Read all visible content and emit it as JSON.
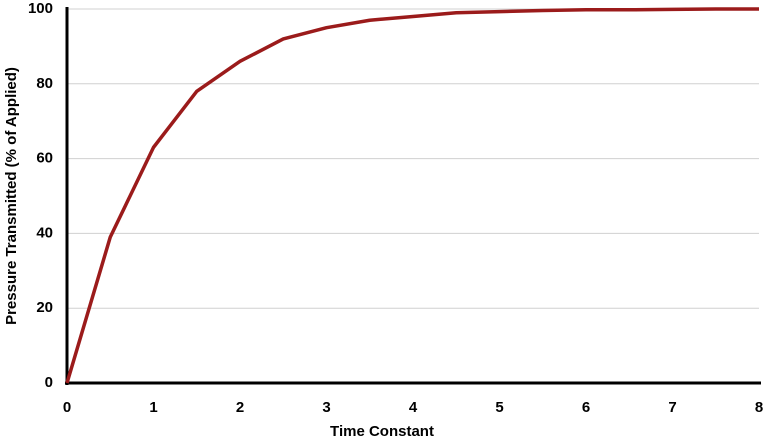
{
  "chart_data": {
    "type": "line",
    "x_label": "Time Constant",
    "y_label": "Pressure Transmitted (% of Applied)",
    "x": [
      0,
      0.5,
      1,
      1.5,
      2,
      2.5,
      3,
      3.5,
      4,
      4.5,
      5,
      5.5,
      6,
      6.5,
      7,
      7.5,
      8
    ],
    "series": [
      {
        "color": "#9b1b1b",
        "values": [
          0,
          39,
          63,
          78,
          86,
          92,
          95,
          97,
          98,
          99,
          99.3,
          99.6,
          99.8,
          99.8,
          99.9,
          100,
          100
        ]
      }
    ],
    "xlim": [
      0,
      8
    ],
    "xticks": [
      0,
      1,
      2,
      3,
      4,
      5,
      6,
      7,
      8
    ],
    "ylim": [
      0,
      100
    ],
    "yticks": [
      0,
      20,
      40,
      60,
      80,
      100
    ],
    "grid": true
  }
}
